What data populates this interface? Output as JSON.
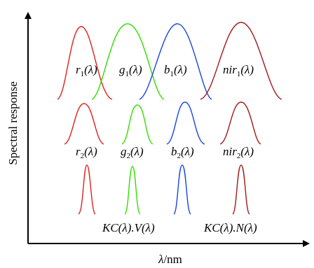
{
  "axes": {
    "y_label": "Spectral response",
    "x_label_symbol": "λ",
    "x_label_unit": "/nm",
    "color": "#000000"
  },
  "rows": [
    {
      "curves": [
        {
          "label_main": "r",
          "label_sub": "1",
          "label_arg": "(λ)",
          "color": "#e02020"
        },
        {
          "label_main": "g",
          "label_sub": "1",
          "label_arg": "(λ)",
          "color": "#33dd00"
        },
        {
          "label_main": "b",
          "label_sub": "1",
          "label_arg": "(λ)",
          "color": "#1a44e0"
        },
        {
          "label_main": "nir",
          "label_sub": "1",
          "label_arg": "(λ)",
          "color": "#a01a1a"
        }
      ]
    },
    {
      "curves": [
        {
          "label_main": "r",
          "label_sub": "2",
          "label_arg": "(λ)",
          "color": "#e02020"
        },
        {
          "label_main": "g",
          "label_sub": "2",
          "label_arg": "(λ)",
          "color": "#33dd00"
        },
        {
          "label_main": "b",
          "label_sub": "2",
          "label_arg": "(λ)",
          "color": "#1a44e0"
        },
        {
          "label_main": "nir",
          "label_sub": "2",
          "label_arg": "(λ)",
          "color": "#a01a1a"
        }
      ]
    },
    {
      "curves": [
        {
          "color": "#e02020"
        },
        {
          "color": "#33dd00"
        },
        {
          "color": "#1a44e0"
        },
        {
          "color": "#a01a1a"
        }
      ],
      "captions": [
        {
          "text": "KC(λ).V(λ)"
        },
        {
          "text": "KC(λ).N(λ)"
        }
      ]
    }
  ]
}
